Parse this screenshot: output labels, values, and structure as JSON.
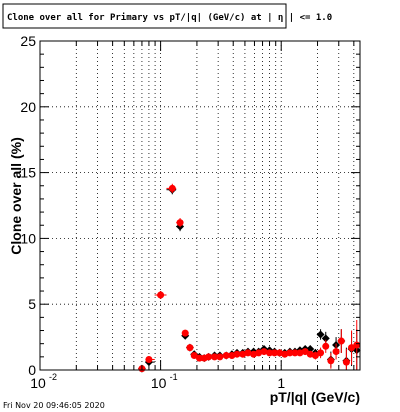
{
  "title": "Clone  over all for Primary vs pT/|q| (GeV/c) at |  η | <= 1.0",
  "footer": "Fri Nov 20 09:46:05 2020",
  "chart_data": {
    "type": "scatter",
    "title": "Clone  over all for Primary vs pT/|q| (GeV/c) at |  η | <= 1.0",
    "xlabel": "pT/|q| (GeV/c)",
    "ylabel": "Clone  over all (%)",
    "xscale": "log",
    "xlim": [
      0.01,
      4.5
    ],
    "ylim": [
      0,
      25
    ],
    "grid": true,
    "y_ticks": [
      "0",
      "5",
      "10",
      "15",
      "20",
      "25"
    ],
    "x_tick_labels": [
      {
        "value": 0.01,
        "label": "10",
        "exp": "-2"
      },
      {
        "value": 0.1,
        "label": "10",
        "exp": "-1"
      },
      {
        "value": 1,
        "label": "1",
        "exp": ""
      }
    ],
    "series": [
      {
        "color": "#000000",
        "marker": "diamond",
        "x": [
          0.07,
          0.08,
          0.1,
          0.125,
          0.145,
          0.16,
          0.175,
          0.19,
          0.21,
          0.23,
          0.25,
          0.28,
          0.31,
          0.35,
          0.39,
          0.43,
          0.48,
          0.53,
          0.59,
          0.65,
          0.72,
          0.8,
          0.88,
          0.97,
          1.07,
          1.18,
          1.3,
          1.43,
          1.58,
          1.74,
          1.92,
          2.12,
          2.34,
          2.58,
          2.85,
          3.15,
          3.47,
          3.83,
          4.23
        ],
        "y": [
          0.1,
          0.6,
          5.7,
          13.7,
          10.9,
          2.6,
          1.7,
          1.2,
          1.0,
          0.9,
          1.0,
          1.1,
          1.1,
          1.1,
          1.2,
          1.3,
          1.3,
          1.4,
          1.4,
          1.4,
          1.6,
          1.5,
          1.4,
          1.3,
          1.3,
          1.4,
          1.4,
          1.5,
          1.6,
          1.6,
          1.3,
          2.7,
          2.4,
          0.8,
          1.9,
          2.2,
          0.7,
          1.6,
          1.5
        ],
        "yerr": [
          0.1,
          0.25,
          0.3,
          0.35,
          0.35,
          0.25,
          0.2,
          0.1,
          0.1,
          0.1,
          0.1,
          0.1,
          0.1,
          0.1,
          0.1,
          0.1,
          0.1,
          0.1,
          0.1,
          0.1,
          0.15,
          0.15,
          0.15,
          0.15,
          0.15,
          0.2,
          0.2,
          0.2,
          0.25,
          0.25,
          0.3,
          0.4,
          0.5,
          0.6,
          0.6,
          0.9,
          1.0,
          1.3,
          1.6
        ]
      },
      {
        "color": "#ff0000",
        "marker": "circle",
        "x": [
          0.07,
          0.08,
          0.1,
          0.125,
          0.145,
          0.16,
          0.175,
          0.19,
          0.21,
          0.23,
          0.25,
          0.28,
          0.31,
          0.35,
          0.39,
          0.43,
          0.48,
          0.53,
          0.59,
          0.65,
          0.72,
          0.8,
          0.88,
          0.97,
          1.07,
          1.18,
          1.3,
          1.43,
          1.58,
          1.74,
          1.92,
          2.12,
          2.34,
          2.58,
          2.85,
          3.15,
          3.47,
          3.83,
          4.23
        ],
        "y": [
          0.1,
          0.8,
          5.7,
          13.8,
          11.2,
          2.8,
          1.7,
          1.1,
          0.9,
          0.9,
          1.0,
          1.0,
          1.0,
          1.1,
          1.1,
          1.2,
          1.2,
          1.3,
          1.2,
          1.3,
          1.4,
          1.3,
          1.3,
          1.3,
          1.2,
          1.3,
          1.3,
          1.3,
          1.4,
          1.2,
          1.1,
          1.3,
          1.8,
          0.7,
          1.4,
          2.2,
          0.6,
          1.7,
          1.9
        ],
        "yerr": [
          0.1,
          0.25,
          0.3,
          0.35,
          0.35,
          0.25,
          0.2,
          0.1,
          0.1,
          0.1,
          0.1,
          0.1,
          0.1,
          0.1,
          0.1,
          0.1,
          0.1,
          0.1,
          0.1,
          0.1,
          0.15,
          0.15,
          0.15,
          0.15,
          0.15,
          0.2,
          0.2,
          0.2,
          0.25,
          0.25,
          0.3,
          0.4,
          0.5,
          0.6,
          0.6,
          0.9,
          1.0,
          1.3,
          1.9
        ]
      }
    ]
  }
}
